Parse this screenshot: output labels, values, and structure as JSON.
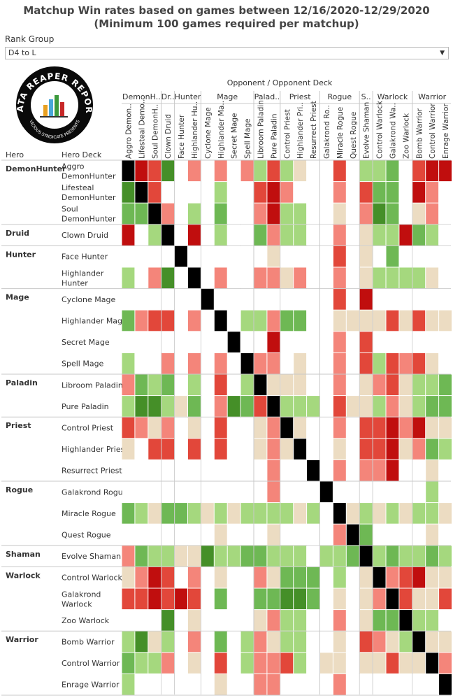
{
  "title_line1": "Matchup Win rates based on games between 12/16/2020-12/29/2020",
  "title_line2": "(Minimum 100 games required per matchup)",
  "filter": {
    "label": "Rank Group",
    "value": "D4 to L"
  },
  "logo": {
    "text": "DATA REAPER REPORT",
    "subtext": "VICIOUS SYNDICATE PRESENTS"
  },
  "colors": {
    "dark_red": "#c00e0e",
    "red": "#e2473a",
    "salmon": "#f4857a",
    "tan": "#ecdcc2",
    "light_green": "#a5d87e",
    "green": "#6eb854",
    "dark_green": "#458f28",
    "mirror": "#000000",
    "none": "#ffffff"
  },
  "chart_data": {
    "type": "heatmap",
    "title": "Matchup Win rates based on games between 12/16/2020-12/29/2020",
    "subtitle": "(Minimum 100 games required per matchup)",
    "column_header": "Opponent  /  Opponent Deck",
    "row_header_class": "Hero",
    "row_header_deck": "Hero Deck",
    "value_scale": "0=no data, 1=dark red, 2=red, 3=salmon, 4=tan, 5=light green, 6=green, 7=dark green, 9=mirror",
    "class_groups": [
      {
        "name": "DemonHunter",
        "short": "DemonH..",
        "decks": [
          "Aggro DemonHunter",
          "Lifesteal DemonHunter",
          "Soul DemonHunter"
        ]
      },
      {
        "name": "Druid",
        "short": "Dr..",
        "decks": [
          "Clown Druid"
        ]
      },
      {
        "name": "Hunter",
        "short": "Hunter",
        "decks": [
          "Face Hunter",
          "Highlander Hunter"
        ]
      },
      {
        "name": "Mage",
        "short": "Mage",
        "decks": [
          "Cyclone Mage",
          "Highlander Mage",
          "Secret Mage",
          "Spell Mage"
        ]
      },
      {
        "name": "Paladin",
        "short": "Palad..",
        "decks": [
          "Libroom Paladin",
          "Pure Paladin"
        ]
      },
      {
        "name": "Priest",
        "short": "Priest",
        "decks": [
          "Control Priest",
          "Highlander Priest",
          "Resurrect Priest"
        ]
      },
      {
        "name": "Rogue",
        "short": "Rogue",
        "decks": [
          "Galakrond Rogue",
          "Miracle Rogue",
          "Quest Rogue"
        ]
      },
      {
        "name": "Shaman",
        "short": "S..",
        "decks": [
          "Evolve Shaman"
        ]
      },
      {
        "name": "Warlock",
        "short": "Warlock",
        "decks": [
          "Control Warlock",
          "Galakrond Warlock",
          "Zoo Warlock"
        ]
      },
      {
        "name": "Warrior",
        "short": "Warrior",
        "decks": [
          "Bomb Warrior",
          "Control Warrior",
          "Enrage Warrior"
        ]
      }
    ],
    "column_labels": [
      "Aggro Demon..",
      "Lifesteal Demo..",
      "Soul DemonH..",
      "Clown Druid",
      "Face Hunter",
      "Highlander Hu..",
      "Cyclone Mage",
      "Highlander Ma..",
      "Secret Mage",
      "Spell Mage",
      "Libroom Paladin",
      "Pure Paladin",
      "Control Priest",
      "Highlander Pri..",
      "Resurrect Priest",
      "Galakrond Ro..",
      "Miracle Rogue",
      "Quest Rogue",
      "Evolve Shaman",
      "Control Warlock",
      "Galakrond Wa..",
      "Zoo Warlock",
      "Bomb Warrior",
      "Control Warrior",
      "Enrage Warrior"
    ],
    "row_labels": [
      [
        "Aggro",
        "DemonHunter"
      ],
      [
        "Lifesteal",
        "DemonHunter"
      ],
      [
        "Soul",
        "DemonHunter"
      ],
      [
        "Clown Druid"
      ],
      [
        "Face Hunter"
      ],
      [
        "Highlander",
        "Hunter"
      ],
      [
        "Cyclone Mage"
      ],
      [
        "Highlander Mage"
      ],
      [
        "Secret Mage"
      ],
      [
        "Spell Mage"
      ],
      [
        "Libroom Paladin"
      ],
      [
        "Pure Paladin"
      ],
      [
        "Control Priest"
      ],
      [
        "Highlander Priest"
      ],
      [
        "Resurrect Priest"
      ],
      [
        "Galakrond Rogue"
      ],
      [
        "Miracle Rogue"
      ],
      [
        "Quest Rogue"
      ],
      [
        "Evolve Shaman"
      ],
      [
        "Control Warlock"
      ],
      [
        "Galakrond",
        "Warlock"
      ],
      [
        "Zoo Warlock"
      ],
      [
        "Bomb Warrior"
      ],
      [
        "Control Warrior"
      ],
      [
        "Enrage Warrior"
      ]
    ],
    "values": [
      [
        9,
        1,
        2,
        7,
        0,
        3,
        0,
        3,
        0,
        3,
        5,
        2,
        5,
        4,
        0,
        0,
        2,
        0,
        5,
        5,
        6,
        0,
        2,
        1,
        1
      ],
      [
        7,
        9,
        2,
        0,
        0,
        0,
        0,
        5,
        0,
        0,
        2,
        1,
        3,
        0,
        0,
        0,
        3,
        0,
        2,
        6,
        6,
        0,
        1,
        3,
        0
      ],
      [
        6,
        6,
        9,
        3,
        0,
        5,
        0,
        6,
        0,
        0,
        3,
        1,
        5,
        5,
        0,
        0,
        4,
        0,
        3,
        7,
        6,
        0,
        4,
        3,
        0
      ],
      [
        1,
        0,
        5,
        9,
        0,
        1,
        0,
        5,
        0,
        0,
        6,
        3,
        5,
        5,
        0,
        0,
        3,
        0,
        4,
        5,
        5,
        1,
        6,
        5,
        0
      ],
      [
        0,
        0,
        0,
        0,
        9,
        0,
        0,
        0,
        0,
        0,
        0,
        4,
        0,
        0,
        0,
        0,
        2,
        0,
        4,
        0,
        6,
        0,
        0,
        0,
        0
      ],
      [
        5,
        0,
        3,
        7,
        0,
        9,
        0,
        3,
        0,
        0,
        3,
        3,
        4,
        3,
        0,
        0,
        3,
        0,
        4,
        5,
        5,
        5,
        5,
        4,
        0
      ],
      [
        0,
        0,
        0,
        0,
        0,
        0,
        9,
        0,
        0,
        0,
        0,
        0,
        0,
        0,
        0,
        0,
        2,
        0,
        1,
        0,
        0,
        0,
        0,
        0,
        0
      ],
      [
        6,
        3,
        2,
        2,
        0,
        3,
        0,
        9,
        0,
        5,
        5,
        3,
        6,
        6,
        0,
        0,
        4,
        4,
        4,
        4,
        2,
        4,
        2,
        4,
        4
      ],
      [
        0,
        0,
        0,
        0,
        0,
        0,
        0,
        0,
        9,
        0,
        0,
        1,
        0,
        0,
        0,
        0,
        3,
        0,
        2,
        0,
        0,
        0,
        0,
        0,
        0
      ],
      [
        5,
        0,
        0,
        3,
        0,
        3,
        0,
        3,
        0,
        9,
        3,
        3,
        0,
        4,
        0,
        0,
        3,
        0,
        2,
        5,
        2,
        3,
        2,
        4,
        0
      ],
      [
        3,
        6,
        5,
        6,
        0,
        5,
        0,
        2,
        0,
        5,
        9,
        4,
        4,
        4,
        0,
        0,
        3,
        0,
        4,
        3,
        2,
        4,
        5,
        5,
        6
      ],
      [
        5,
        7,
        7,
        5,
        4,
        6,
        0,
        3,
        7,
        6,
        2,
        9,
        5,
        5,
        5,
        0,
        2,
        4,
        4,
        5,
        3,
        4,
        5,
        6,
        6
      ],
      [
        2,
        3,
        4,
        3,
        0,
        4,
        0,
        2,
        0,
        0,
        4,
        3,
        9,
        4,
        0,
        0,
        3,
        0,
        2,
        2,
        1,
        3,
        1,
        4,
        4
      ],
      [
        4,
        0,
        2,
        2,
        0,
        2,
        0,
        2,
        0,
        0,
        4,
        3,
        4,
        9,
        0,
        0,
        4,
        0,
        2,
        2,
        1,
        4,
        3,
        6,
        5
      ],
      [
        0,
        0,
        0,
        0,
        0,
        0,
        0,
        0,
        0,
        0,
        0,
        3,
        0,
        0,
        9,
        0,
        3,
        0,
        3,
        3,
        1,
        0,
        0,
        4,
        0
      ],
      [
        0,
        0,
        0,
        0,
        0,
        0,
        0,
        0,
        0,
        0,
        0,
        3,
        0,
        0,
        0,
        9,
        0,
        0,
        0,
        0,
        0,
        0,
        0,
        5,
        0
      ],
      [
        6,
        5,
        4,
        6,
        6,
        5,
        4,
        5,
        4,
        5,
        5,
        5,
        5,
        4,
        5,
        0,
        9,
        4,
        5,
        4,
        5,
        4,
        5,
        5,
        4
      ],
      [
        0,
        0,
        0,
        0,
        0,
        0,
        0,
        4,
        0,
        0,
        0,
        4,
        0,
        0,
        0,
        0,
        3,
        9,
        6,
        0,
        0,
        0,
        0,
        4,
        0
      ],
      [
        3,
        6,
        5,
        5,
        4,
        4,
        7,
        5,
        5,
        6,
        6,
        5,
        5,
        5,
        0,
        5,
        5,
        6,
        9,
        5,
        6,
        5,
        5,
        6,
        5
      ],
      [
        4,
        3,
        1,
        2,
        0,
        3,
        0,
        4,
        0,
        0,
        3,
        4,
        6,
        6,
        6,
        0,
        5,
        0,
        4,
        9,
        3,
        2,
        1,
        4,
        4
      ],
      [
        2,
        2,
        1,
        2,
        1,
        2,
        0,
        6,
        0,
        0,
        6,
        6,
        7,
        7,
        6,
        0,
        4,
        0,
        4,
        3,
        9,
        2,
        4,
        4,
        2
      ],
      [
        0,
        0,
        0,
        7,
        0,
        4,
        0,
        0,
        0,
        0,
        4,
        3,
        5,
        5,
        0,
        0,
        3,
        0,
        4,
        6,
        6,
        9,
        5,
        5,
        0
      ],
      [
        5,
        7,
        4,
        5,
        0,
        3,
        0,
        6,
        0,
        5,
        3,
        4,
        5,
        5,
        0,
        0,
        4,
        0,
        2,
        3,
        4,
        5,
        9,
        4,
        4
      ],
      [
        6,
        5,
        5,
        3,
        0,
        4,
        0,
        2,
        0,
        5,
        3,
        3,
        2,
        5,
        0,
        4,
        4,
        0,
        4,
        4,
        2,
        4,
        4,
        9,
        3
      ],
      [
        5,
        0,
        0,
        0,
        0,
        0,
        0,
        4,
        0,
        0,
        3,
        3,
        0,
        0,
        0,
        0,
        3,
        0,
        0,
        0,
        0,
        0,
        0,
        0,
        9
      ]
    ]
  }
}
